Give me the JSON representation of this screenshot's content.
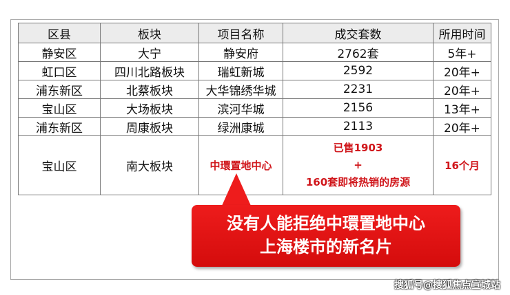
{
  "table": {
    "headers": [
      "区县",
      "板块",
      "项目名称",
      "成交套数",
      "所用时间"
    ],
    "rows": [
      [
        "静安区",
        "大宁",
        "静安府",
        "2762套",
        "5年+"
      ],
      [
        "虹口区",
        "四川北路板块",
        "瑞虹新城",
        "2592",
        "20年+"
      ],
      [
        "浦东新区",
        "北蔡板块",
        "大华锦绣华城",
        "2231",
        "20年+"
      ],
      [
        "宝山区",
        "大场板块",
        "滨河华城",
        "2156",
        "13年+"
      ],
      [
        "浦东新区",
        "周康板块",
        "绿洲康城",
        "2113",
        "20年+"
      ]
    ],
    "highlight": {
      "district": "宝山区",
      "block": "南大板块",
      "project": "中環置地中心",
      "sold_line1": "已售1903",
      "sold_line2": "+",
      "sold_line3": "160套即将热销的房源",
      "time": "16个月"
    }
  },
  "callout": {
    "line1": "没有人能拒绝中環置地中心",
    "line2": "上海楼市的新名片"
  },
  "watermark": "搜狐号@搜狐焦点宣城站",
  "colors": {
    "accent": "#d0161b",
    "callout": "#e31414",
    "header_bg": "#ececec"
  }
}
